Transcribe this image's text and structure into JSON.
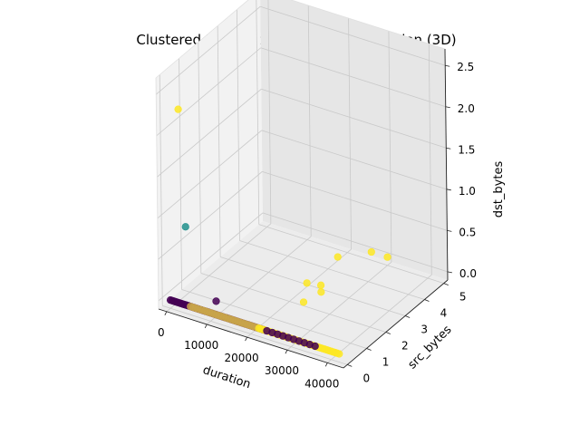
{
  "chart_data": {
    "type": "scatter",
    "title": "Clustered Data with Mean Shift Correction (3D)",
    "xlabel": "duration",
    "ylabel": "src_bytes",
    "zlabel": "dst_bytes",
    "xlim": [
      -2000,
      44000
    ],
    "ylim": [
      -0.2,
      5.2
    ],
    "zlim": [
      -0.1,
      2.7
    ],
    "x_ticks": [
      "0",
      "10000",
      "20000",
      "30000",
      "40000"
    ],
    "y_ticks": [
      "0",
      "1",
      "2",
      "3",
      "4",
      "5"
    ],
    "z_ticks": [
      "0.0",
      "0.5",
      "1.0",
      "1.5",
      "2.0",
      "2.5"
    ],
    "grid": true,
    "colors": {
      "cluster_0": "#440154",
      "cluster_1": "#21918c",
      "cluster_2": "#fde725",
      "mixed": "#c8a44a"
    },
    "points": [
      {
        "x": 2500,
        "y": 0.0,
        "z": 2.35,
        "c": "cluster_2"
      },
      {
        "x": 4000,
        "y": 0.0,
        "z": 0.95,
        "c": "cluster_1"
      },
      {
        "x": 30000,
        "y": 5.0,
        "z": 0.0,
        "c": "cluster_2"
      },
      {
        "x": 26000,
        "y": 5.0,
        "z": 0.0,
        "c": "cluster_2"
      },
      {
        "x": 21000,
        "y": 4.3,
        "z": 0.0,
        "c": "cluster_2"
      },
      {
        "x": 21000,
        "y": 2.7,
        "z": 0.0,
        "c": "cluster_2"
      },
      {
        "x": 24000,
        "y": 2.8,
        "z": 0.0,
        "c": "cluster_2"
      },
      {
        "x": 25500,
        "y": 2.5,
        "z": 0.0,
        "c": "cluster_2"
      },
      {
        "x": 24500,
        "y": 1.8,
        "z": 0.0,
        "c": "cluster_2"
      },
      {
        "x": 8500,
        "y": 0.6,
        "z": 0.0,
        "c": "cluster_0"
      }
    ],
    "lines": [
      {
        "x0": 0,
        "x1": 24000,
        "n": 70,
        "c": "cluster_0"
      },
      {
        "x0": 5000,
        "x1": 22000,
        "n": 30,
        "c": "mixed"
      },
      {
        "x0": 22000,
        "x1": 42000,
        "n": 40,
        "c": "cluster_2"
      },
      {
        "x0": 24000,
        "x1": 36000,
        "n": 10,
        "c": "cluster_0"
      }
    ]
  }
}
